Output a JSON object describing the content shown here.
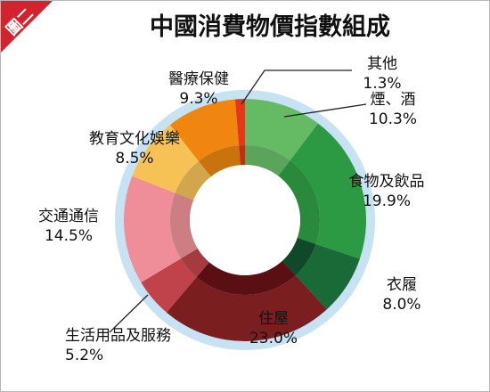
{
  "figure": {
    "badge": "圖二",
    "title": "中國消費物價指數組成"
  },
  "colors": {
    "badge": "#d3232f",
    "ring_outer": "#c7e2f3"
  },
  "chart_data": {
    "type": "pie",
    "title": "中國消費物價指數組成",
    "unit": "%",
    "slices": [
      {
        "name": "煙、酒",
        "value": 10.3,
        "label": "10.3%",
        "color": "#65bb63",
        "inner": "#5aa45b"
      },
      {
        "name": "食物及飲品",
        "value": 19.9,
        "label": "19.9%",
        "color": "#2c9a42",
        "inner": "#2a8a3c"
      },
      {
        "name": "衣履",
        "value": 8.0,
        "label": "8.0%",
        "color": "#196a37",
        "inner": "#10492a"
      },
      {
        "name": "住屋",
        "value": 23.0,
        "label": "23.0%",
        "color": "#7a1e20",
        "inner": "#5a0f12"
      },
      {
        "name": "生活用品及服務",
        "value": 5.2,
        "label": "5.2%",
        "color": "#c0424a",
        "inner": "#a33b3f"
      },
      {
        "name": "交通通信",
        "value": 14.5,
        "label": "14.5%",
        "color": "#ef8e98",
        "inner": "#cc7e82"
      },
      {
        "name": "教育文化娛樂",
        "value": 8.5,
        "label": "8.5%",
        "color": "#f7c255",
        "inner": "#d2a64d"
      },
      {
        "name": "醫療保健",
        "value": 9.3,
        "label": "9.3%",
        "color": "#f0850f",
        "inner": "#c9730f"
      },
      {
        "name": "其他",
        "value": 1.3,
        "label": "1.3%",
        "color": "#e5371c",
        "inner": "#c02e18"
      }
    ]
  }
}
